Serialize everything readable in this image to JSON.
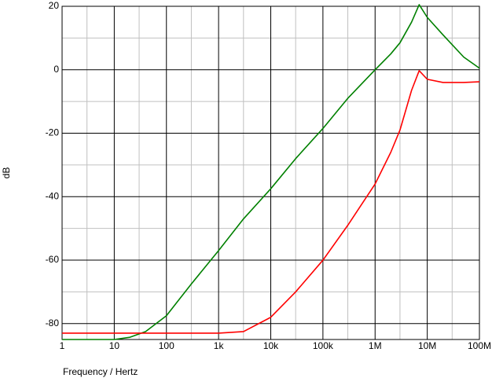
{
  "chart_data": {
    "type": "line",
    "xlabel": "Frequency / Hertz",
    "ylabel": "dB",
    "log_x": true,
    "grid": true,
    "x": [
      1,
      3,
      10,
      20,
      40,
      100,
      300,
      1000,
      3000,
      10000,
      30000,
      100000,
      300000,
      1000000,
      2000000,
      3000000,
      5000000,
      7000000,
      10000000,
      20000000,
      50000000,
      100000000
    ],
    "series": [
      {
        "color": "#008000",
        "values": [
          -85,
          -85,
          -85,
          -84.3,
          -82.5,
          -77.5,
          -67.5,
          -57,
          -47,
          -37.5,
          -28,
          -18.5,
          -9,
          0,
          5,
          8.5,
          15,
          20.5,
          16.5,
          11,
          4,
          0.5
        ]
      },
      {
        "color": "#ff0000",
        "values": [
          -83,
          -83,
          -83,
          -83,
          -83,
          -83,
          -83,
          -83,
          -82.5,
          -78,
          -70,
          -60,
          -49,
          -36,
          -26,
          -19,
          -6.5,
          -0.3,
          -3,
          -4,
          -4,
          -3.8
        ]
      }
    ],
    "xlim": [
      1,
      100000000
    ],
    "ylim": [
      -85,
      20
    ],
    "xticks": [
      {
        "value": 1,
        "label": "1"
      },
      {
        "value": 10,
        "label": "10"
      },
      {
        "value": 100,
        "label": "100"
      },
      {
        "value": 1000,
        "label": "1k"
      },
      {
        "value": 10000,
        "label": "10k"
      },
      {
        "value": 100000,
        "label": "100k"
      },
      {
        "value": 1000000,
        "label": "1M"
      },
      {
        "value": 10000000,
        "label": "10M"
      },
      {
        "value": 100000000,
        "label": "100M"
      }
    ],
    "yticks": [
      20,
      0,
      -20,
      -40,
      -60,
      -80
    ],
    "x_minor_ticks": [
      3,
      30,
      300,
      3000,
      30000,
      300000,
      3000000,
      30000000
    ],
    "y_minor_ticks": [
      10,
      -10,
      -30,
      -50,
      -70
    ]
  }
}
